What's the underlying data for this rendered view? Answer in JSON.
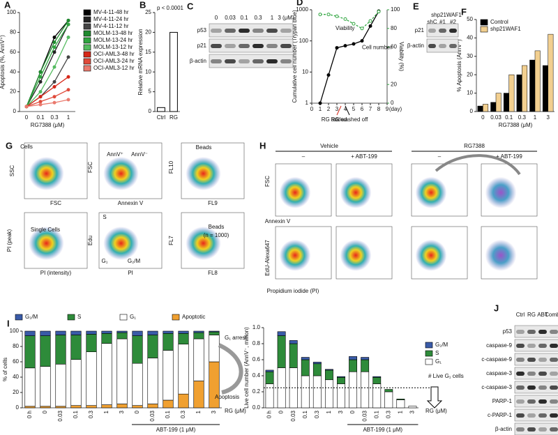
{
  "chart_data": [
    {
      "type": "line",
      "letter": "A",
      "ylabel": "Apoptosis (%, AnnV⁺)",
      "xlabel": "RG7388 (μM)",
      "categories": [
        "0",
        "0.1",
        "0.3",
        "1"
      ],
      "ylim": [
        0,
        100
      ],
      "yticks": [
        0,
        20,
        40,
        60,
        80,
        100
      ],
      "legend": "right-outside",
      "series": [
        {
          "name": "MV-4-11-48 hr",
          "color": "#000000",
          "values": [
            5,
            40,
            75,
            92
          ]
        },
        {
          "name": "MV-4-11-24 hr",
          "color": "#222222",
          "values": [
            5,
            30,
            60,
            88
          ]
        },
        {
          "name": "MV-4-11-12 hr",
          "color": "#444444",
          "values": [
            5,
            15,
            30,
            55
          ]
        },
        {
          "name": "MOLM-13-48 hr",
          "color": "#1f8a2e",
          "values": [
            5,
            40,
            70,
            92
          ]
        },
        {
          "name": "MOLM-13-24 hr",
          "color": "#2fa53f",
          "values": [
            5,
            35,
            65,
            88
          ]
        },
        {
          "name": "MOLM-13-12 hr",
          "color": "#55bb60",
          "values": [
            5,
            20,
            45,
            75
          ]
        },
        {
          "name": "OCI-AML3-48 hr",
          "color": "#d62718",
          "values": [
            5,
            15,
            25,
            35
          ]
        },
        {
          "name": "OCI-AML3-24 hr",
          "color": "#e04a3a",
          "values": [
            5,
            10,
            15,
            22
          ]
        },
        {
          "name": "OCI-AML3-12 hr",
          "color": "#ea7a6e",
          "values": [
            5,
            7,
            9,
            12
          ]
        }
      ]
    },
    {
      "type": "bar",
      "letter": "B",
      "ylabel": "Relative mRNA expression",
      "categories": [
        "Ctrl",
        "RG"
      ],
      "values": [
        1,
        20
      ],
      "color": "#ffffff",
      "ylim": [
        0,
        25
      ],
      "yticks": [
        0,
        5,
        10,
        15,
        20,
        25
      ],
      "annotations": [
        "p < 0.0001"
      ]
    },
    {
      "type": "line",
      "letter": "D",
      "ylabel": "Cumulative cell number (Trypan blue)",
      "y2label": "Viability (%)",
      "xlabel": "(day)",
      "x": [
        1,
        2,
        3,
        4,
        5,
        6,
        7,
        8
      ],
      "xlim": [
        0,
        9
      ],
      "xticks": [
        0,
        1,
        2,
        3,
        4,
        5,
        6,
        7,
        8,
        9
      ],
      "log_y": true,
      "ylim": [
        1,
        1000
      ],
      "yticks": [
        1,
        10,
        100,
        1000
      ],
      "y2lim": [
        0,
        100
      ],
      "y2ticks": [
        0,
        20,
        60,
        80,
        100
      ],
      "series": [
        {
          "name": "Cell number",
          "color": "#000000",
          "values": [
            1,
            8,
            60,
            70,
            80,
            100,
            300,
            900
          ]
        },
        {
          "name": "Viability",
          "color": "#2fa53f",
          "axis": "y2",
          "dashed": true,
          "values": [
            95,
            95,
            93,
            90,
            85,
            80,
            88,
            98
          ]
        }
      ],
      "annotations": [
        "RG added",
        "RG washed off"
      ]
    },
    {
      "type": "bar",
      "letter": "F",
      "ylabel": "% Apoptosis (AnnV⁺)",
      "xlabel": "RG7388 (μM)",
      "categories": [
        "0",
        "0.03",
        "0.1",
        "0.3",
        "1",
        "3"
      ],
      "ylim": [
        0,
        50
      ],
      "yticks": [
        0,
        10,
        20,
        30,
        40,
        50
      ],
      "legend": "top-left",
      "series": [
        {
          "name": "Control",
          "color": "#000000",
          "values": [
            3,
            5,
            10,
            20,
            28,
            25
          ]
        },
        {
          "name": "shp21WAF1",
          "color": "#f2cf8f",
          "values": [
            4,
            10,
            20,
            25,
            33,
            42
          ]
        }
      ]
    },
    {
      "type": "bar",
      "letter": "I",
      "stacked": true,
      "ylabel": "% of cells",
      "categories": [
        "0 h",
        "0",
        "0.03",
        "0.1",
        "0.3",
        "1",
        "3",
        "0",
        "0.03",
        "0.1",
        "0.3",
        "1",
        "3"
      ],
      "ylim": [
        0,
        100
      ],
      "yticks": [
        0,
        20,
        40,
        60,
        80,
        100
      ],
      "legend": "top",
      "series": [
        {
          "name": "G₂/M",
          "color": "#3a5ba8",
          "values": [
            6,
            6,
            5,
            5,
            4,
            3,
            2,
            6,
            5,
            3,
            3,
            2,
            1
          ]
        },
        {
          "name": "S",
          "color": "#2e8b3a",
          "values": [
            42,
            40,
            38,
            32,
            23,
            13,
            8,
            36,
            30,
            22,
            14,
            8,
            4
          ]
        },
        {
          "name": "G₁",
          "color": "#ffffff",
          "values": [
            50,
            52,
            55,
            60,
            70,
            80,
            85,
            55,
            60,
            65,
            65,
            55,
            35
          ]
        },
        {
          "name": "Apoptotic",
          "color": "#f0a030",
          "values": [
            2,
            2,
            2,
            3,
            3,
            4,
            5,
            3,
            5,
            10,
            18,
            35,
            60
          ]
        }
      ],
      "annotations": [
        "G₁ arrest",
        "Apoptosis",
        "RG (μM)",
        "ABT-199 (1 μM)"
      ]
    },
    {
      "type": "bar",
      "stacked": true,
      "ylabel": "Live cell number (AnnV⁻, million)",
      "categories": [
        "0 h",
        "0",
        "0.03",
        "0.1",
        "0.3",
        "1",
        "3",
        "0",
        "0.03",
        "0.1",
        "0.3",
        "1",
        "3"
      ],
      "ylim": [
        0,
        1
      ],
      "yticks": [
        {
          "value": 0,
          "label": "0.0"
        },
        0.2,
        0.4,
        0.6,
        0.8,
        {
          "value": 1,
          "label": "1.0"
        }
      ],
      "legend": "right",
      "reference_line": 0.25,
      "series": [
        {
          "name": "G₂/M",
          "color": "#3a5ba8",
          "values": [
            0.02,
            0.05,
            0.04,
            0.03,
            0.02,
            0.01,
            0.01,
            0.04,
            0.03,
            0.01,
            0,
            0,
            0
          ]
        },
        {
          "name": "S",
          "color": "#2e8b3a",
          "values": [
            0.15,
            0.4,
            0.3,
            0.2,
            0.15,
            0.12,
            0.08,
            0.15,
            0.15,
            0.08,
            0.03,
            0.01,
            0
          ]
        },
        {
          "name": "G₁",
          "color": "#ffffff",
          "values": [
            0.3,
            0.5,
            0.5,
            0.4,
            0.4,
            0.35,
            0.3,
            0.45,
            0.45,
            0.3,
            0.2,
            0.1,
            0.02
          ]
        }
      ],
      "annotations": [
        "# Live G₁ cells",
        "RG (μM)",
        "ABT-199 (1 μM)"
      ]
    }
  ],
  "figure": {
    "C": {
      "letter": "C",
      "columns": [
        "0",
        "0.03",
        "0.1",
        "0.3",
        "1",
        "3 (μM)"
      ],
      "rows": [
        "p53",
        "p21",
        "β-actin"
      ]
    },
    "E": {
      "letter": "E",
      "header": "shp21WAF1",
      "columns": [
        "shC",
        "#1",
        "#2"
      ],
      "rows": [
        "p21",
        "β-actin"
      ]
    },
    "J": {
      "letter": "J",
      "columns": [
        "Ctrl",
        "RG",
        "ABT",
        "Combo"
      ],
      "rows": [
        "p53",
        "caspase-9",
        "c-caspase-9",
        "caspase-3",
        "c-caspase-3",
        "PARP-1",
        "c-PARP-1",
        "β-actin"
      ]
    },
    "G": {
      "letter": "G",
      "labels": [
        "Cells",
        "SSC",
        "FSC",
        "FSC",
        "Annexin V",
        "AnnV⁺",
        "AnnV⁻",
        "FL10",
        "FL9",
        "Beads",
        "PI (peak)",
        "PI (intensity)",
        "Single Cells",
        "Edu",
        "PI",
        "S",
        "G₁",
        "G₂/M",
        "FL7",
        "FL8",
        "Beads",
        "(n = 1000)"
      ]
    },
    "H": {
      "letter": "H",
      "labels": [
        "Vehicle",
        "RG7388",
        "–",
        "+ ABT-199",
        "–",
        "+ ABT-199",
        "FSC",
        "Annexin V",
        "EdU-Alexa647",
        "Propidium iodide (PI)"
      ]
    }
  }
}
